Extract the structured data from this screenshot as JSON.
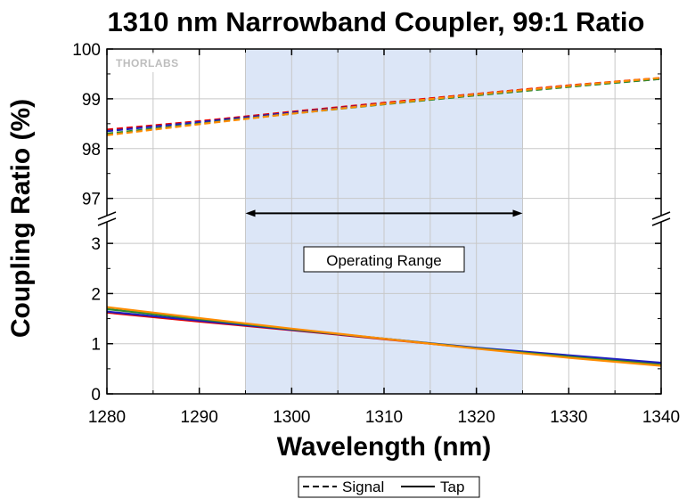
{
  "chart_data": {
    "type": "line",
    "title": "1310 nm Narrowband Coupler, 99:1 Ratio",
    "xlabel": "Wavelength (nm)",
    "ylabel": "Coupling Ratio (%)",
    "xlim": [
      1280,
      1340
    ],
    "x_ticks": [
      1280,
      1290,
      1300,
      1310,
      1320,
      1330,
      1340
    ],
    "y_axis_broken": true,
    "y_upper_ticks": [
      97,
      98,
      99,
      100
    ],
    "y_lower_ticks": [
      0,
      1,
      2,
      3
    ],
    "ylim_upper": [
      96.6,
      100
    ],
    "ylim_lower": [
      0,
      3.5
    ],
    "grid": true,
    "logo_text": "THORLABS",
    "shaded_region": {
      "x": [
        1295,
        1325
      ],
      "color": "#dce6f7"
    },
    "annotation": {
      "text": "Operating Range",
      "arrow_x": [
        1295,
        1325
      ],
      "arrow_y": 3.6
    },
    "legend": {
      "placement": "bottom-center",
      "items": [
        {
          "label": "Signal",
          "style": "dashed"
        },
        {
          "label": "Tap",
          "style": "solid"
        }
      ]
    },
    "series": [
      {
        "type": "Signal",
        "color": "#e60000",
        "x": [
          1280,
          1290,
          1300,
          1310,
          1320,
          1330,
          1340
        ],
        "y": [
          98.38,
          98.55,
          98.74,
          98.92,
          99.1,
          99.27,
          99.42
        ]
      },
      {
        "type": "Signal",
        "color": "#1f1fbf",
        "x": [
          1280,
          1290,
          1300,
          1310,
          1320,
          1330,
          1340
        ],
        "y": [
          98.35,
          98.53,
          98.72,
          98.9,
          99.08,
          99.25,
          99.4
        ]
      },
      {
        "type": "Signal",
        "color": "#2e8b2e",
        "x": [
          1280,
          1290,
          1300,
          1310,
          1320,
          1330,
          1340
        ],
        "y": [
          98.3,
          98.5,
          98.7,
          98.89,
          99.07,
          99.24,
          99.4
        ]
      },
      {
        "type": "Signal",
        "color": "#ff8c00",
        "x": [
          1280,
          1290,
          1300,
          1310,
          1320,
          1330,
          1340
        ],
        "y": [
          98.27,
          98.49,
          98.7,
          98.9,
          99.09,
          99.26,
          99.42
        ]
      },
      {
        "type": "Tap",
        "color": "#e60000",
        "x": [
          1280,
          1290,
          1300,
          1310,
          1320,
          1330,
          1340
        ],
        "y": [
          1.62,
          1.44,
          1.27,
          1.09,
          0.91,
          0.75,
          0.6
        ]
      },
      {
        "type": "Tap",
        "color": "#1f1fbf",
        "x": [
          1280,
          1290,
          1300,
          1310,
          1320,
          1330,
          1340
        ],
        "y": [
          1.64,
          1.46,
          1.28,
          1.1,
          0.92,
          0.77,
          0.62
        ]
      },
      {
        "type": "Tap",
        "color": "#2e8b2e",
        "x": [
          1280,
          1290,
          1300,
          1310,
          1320,
          1330,
          1340
        ],
        "y": [
          1.69,
          1.49,
          1.29,
          1.1,
          0.91,
          0.74,
          0.58
        ]
      },
      {
        "type": "Tap",
        "color": "#ff8c00",
        "x": [
          1280,
          1290,
          1300,
          1310,
          1320,
          1330,
          1340
        ],
        "y": [
          1.73,
          1.51,
          1.3,
          1.1,
          0.9,
          0.72,
          0.56
        ]
      }
    ]
  }
}
